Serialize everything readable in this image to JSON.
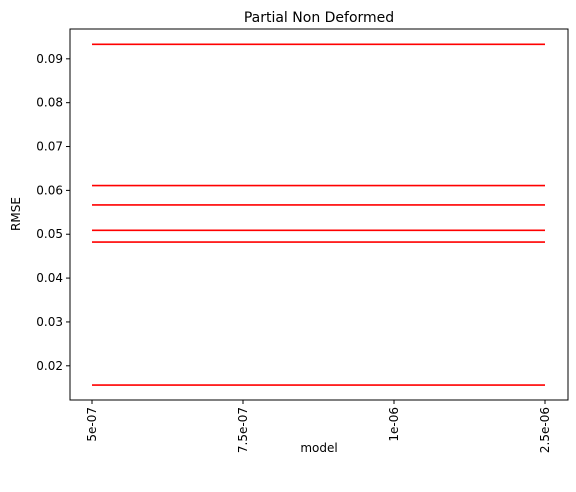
{
  "chart_data": {
    "type": "line",
    "title": "Partial Non Deformed",
    "xlabel": "model",
    "ylabel": "RMSE",
    "categories": [
      "5e-07",
      "7.5e-07",
      "1e-06",
      "2.5e-06"
    ],
    "ylim": [
      0.0122,
      0.0968
    ],
    "yticks": [
      "0.02",
      "0.03",
      "0.04",
      "0.05",
      "0.06",
      "0.07",
      "0.08",
      "0.09"
    ],
    "ytick_values": [
      0.02,
      0.03,
      0.04,
      0.05,
      0.06,
      0.07,
      0.08,
      0.09
    ],
    "line_color": "#ff0000",
    "grid": false,
    "series": [
      {
        "values": [
          0.0933,
          0.0933,
          0.0933,
          0.0933
        ]
      },
      {
        "values": [
          0.0611,
          0.0611,
          0.0611,
          0.0611
        ]
      },
      {
        "values": [
          0.0567,
          0.0567,
          0.0567,
          0.0567
        ]
      },
      {
        "values": [
          0.0509,
          0.0509,
          0.0509,
          0.0509
        ]
      },
      {
        "values": [
          0.0482,
          0.0482,
          0.0482,
          0.0482
        ]
      },
      {
        "values": [
          0.0156,
          0.0156,
          0.0156,
          0.0156
        ]
      }
    ]
  }
}
